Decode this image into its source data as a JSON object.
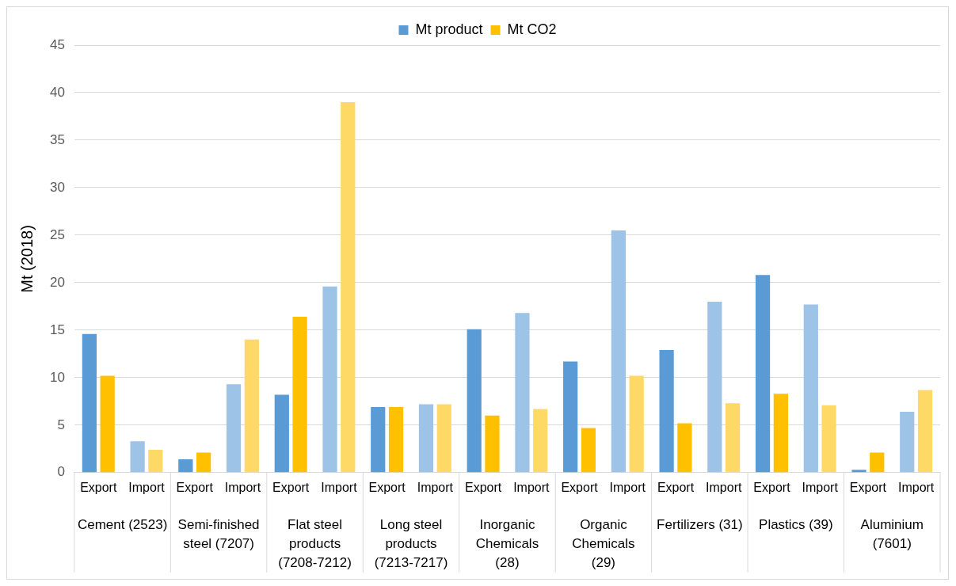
{
  "chart_data": {
    "type": "bar",
    "ylabel": "Mt (2018)",
    "categories": [
      "Export",
      "Import",
      "Export",
      "Import",
      "Export",
      "Import",
      "Export",
      "Import",
      "Export",
      "Import",
      "Export",
      "Import",
      "Export",
      "Import",
      "Export",
      "Import",
      "Export",
      "Import"
    ],
    "series": [
      {
        "name": "Mt product",
        "color": "#5b9bd5",
        "colors": [
          "#5b9bd5",
          "#9dc3e6",
          "#5b9bd5",
          "#9dc3e6",
          "#5b9bd5",
          "#9dc3e6",
          "#5b9bd5",
          "#9dc3e6",
          "#5b9bd5",
          "#9dc3e6",
          "#5b9bd5",
          "#9dc3e6",
          "#5b9bd5",
          "#9dc3e6",
          "#5b9bd5",
          "#9dc3e6",
          "#5b9bd5",
          "#9dc3e6"
        ],
        "values": [
          14.6,
          3.3,
          1.4,
          9.3,
          8.2,
          19.6,
          6.9,
          7.2,
          15.1,
          16.8,
          11.7,
          25.5,
          12.9,
          18.0,
          20.8,
          17.7,
          0.3,
          6.4
        ]
      },
      {
        "name": "Mt CO2",
        "color": "#ffc000",
        "colors": [
          "#ffc000",
          "#ffd966",
          "#ffc000",
          "#ffd966",
          "#ffc000",
          "#ffd966",
          "#ffc000",
          "#ffd966",
          "#ffc000",
          "#ffd966",
          "#ffc000",
          "#ffd966",
          "#ffc000",
          "#ffd966",
          "#ffc000",
          "#ffd966",
          "#ffc000",
          "#ffd966"
        ],
        "values": [
          10.2,
          2.4,
          2.1,
          14.0,
          16.4,
          39.0,
          6.9,
          7.2,
          6.0,
          6.7,
          4.7,
          10.2,
          5.2,
          7.3,
          8.3,
          7.1,
          2.1,
          8.7
        ]
      }
    ],
    "annotations": [
      "Cement (2523)",
      "Semi-finished steel (7207)",
      "Flat steel products (7208-7212)",
      "Long steel products (7213-7217)",
      "Inorganic Chemicals (28)",
      "Organic Chemicals (29)",
      "Fertilizers (31)",
      "Plastics (39)",
      "Aluminium (7601)"
    ],
    "ylim": [
      0,
      45
    ],
    "yticks": [
      0,
      5,
      10,
      15,
      20,
      25,
      30,
      35,
      40,
      45
    ],
    "grid": "y",
    "legend": "top"
  }
}
